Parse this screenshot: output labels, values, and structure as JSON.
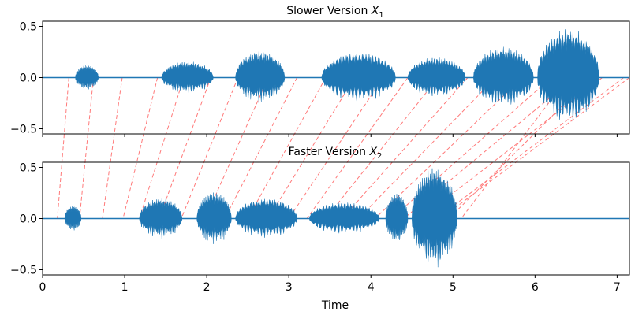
{
  "chart_data": [
    {
      "type": "line",
      "title_prefix": "Slower Version",
      "title_var": "X",
      "title_sub": "1",
      "xlabel": "",
      "ylabel": "",
      "xlim": [
        0,
        7.15
      ],
      "ylim": [
        -0.55,
        0.55
      ],
      "yticks": [
        0.5,
        0.0,
        -0.5
      ],
      "ytick_labels": [
        "0.5",
        "0.0",
        "−0.5"
      ],
      "grid": false,
      "series_color": "#1f77b4",
      "bursts": [
        {
          "start": 0.4,
          "end": 0.68,
          "amp": 0.12
        },
        {
          "start": 1.45,
          "end": 2.08,
          "amp": 0.16
        },
        {
          "start": 2.35,
          "end": 2.95,
          "amp": 0.26
        },
        {
          "start": 3.4,
          "end": 4.3,
          "amp": 0.25
        },
        {
          "start": 4.45,
          "end": 5.15,
          "amp": 0.2
        },
        {
          "start": 5.25,
          "end": 5.98,
          "amp": 0.3
        },
        {
          "start": 6.03,
          "end": 6.78,
          "amp": 0.48
        }
      ]
    },
    {
      "type": "line",
      "title_prefix": "Faster Version",
      "title_var": "X",
      "title_sub": "2",
      "xlabel": "Time",
      "ylabel": "",
      "xlim": [
        0,
        7.15
      ],
      "ylim": [
        -0.55,
        0.55
      ],
      "xticks": [
        0,
        1,
        2,
        3,
        4,
        5,
        6,
        7
      ],
      "xtick_labels": [
        "0",
        "1",
        "2",
        "3",
        "4",
        "5",
        "6",
        "7"
      ],
      "yticks": [
        0.5,
        0.0,
        -0.5
      ],
      "ytick_labels": [
        "0.5",
        "0.0",
        "−0.5"
      ],
      "grid": false,
      "series_color": "#1f77b4",
      "bursts": [
        {
          "start": 0.27,
          "end": 0.47,
          "amp": 0.12
        },
        {
          "start": 1.18,
          "end": 1.7,
          "amp": 0.2
        },
        {
          "start": 1.88,
          "end": 2.3,
          "amp": 0.26
        },
        {
          "start": 2.35,
          "end": 3.1,
          "amp": 0.2
        },
        {
          "start": 3.25,
          "end": 4.1,
          "amp": 0.16
        },
        {
          "start": 4.18,
          "end": 4.45,
          "amp": 0.24
        },
        {
          "start": 4.5,
          "end": 5.05,
          "amp": 0.5
        }
      ]
    }
  ],
  "alignment": {
    "color": "#ff6b6b",
    "pairs": [
      [
        0.32,
        0.18
      ],
      [
        0.62,
        0.45
      ],
      [
        0.97,
        0.73
      ],
      [
        1.4,
        0.98
      ],
      [
        1.72,
        1.18
      ],
      [
        2.05,
        1.42
      ],
      [
        2.38,
        1.69
      ],
      [
        2.75,
        1.98
      ],
      [
        3.1,
        2.22
      ],
      [
        3.45,
        2.5
      ],
      [
        3.8,
        2.75
      ],
      [
        4.15,
        3.0
      ],
      [
        4.45,
        3.22
      ],
      [
        4.82,
        3.45
      ],
      [
        5.18,
        3.65
      ],
      [
        5.52,
        3.85
      ],
      [
        5.85,
        4.05
      ],
      [
        6.2,
        4.25
      ],
      [
        6.48,
        4.4
      ],
      [
        6.82,
        4.6
      ],
      [
        7.08,
        4.8
      ],
      [
        7.15,
        4.85
      ],
      [
        6.68,
        4.95
      ],
      [
        6.4,
        5.1
      ]
    ]
  }
}
